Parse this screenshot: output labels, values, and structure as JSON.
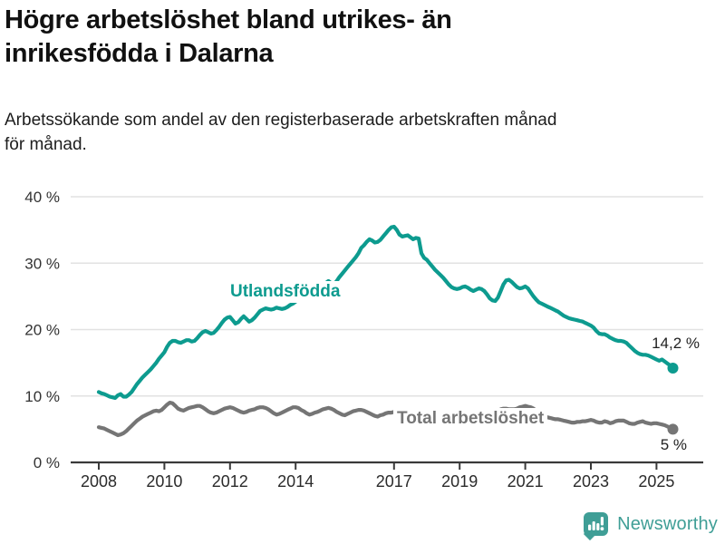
{
  "header": {
    "title_lines": [
      "Högre arbetslöshet bland utrikes- än",
      "inrikesfödda i Dalarna"
    ],
    "subtitle_lines": [
      "Arbetssökande som andel av den registerbaserade arbetskraften månad",
      "för månad."
    ]
  },
  "chart_data": {
    "type": "line",
    "title": "Högre arbetslöshet bland utrikes- än inrikesfödda i Dalarna",
    "subtitle": "Arbetssökande som andel av den registerbaserade arbetskraften månad för månad.",
    "x_unit": "month",
    "x_start": "2008-01",
    "x_end": "2025-07",
    "ylim": [
      0,
      40
    ],
    "grid": "horizontal",
    "legend_position": "inline-labels",
    "x_ticks": [
      "2008",
      "2010",
      "2012",
      "2014",
      "2017",
      "2019",
      "2021",
      "2023",
      "2025"
    ],
    "y_ticks": [
      {
        "value": 0,
        "label": "0 %"
      },
      {
        "value": 10,
        "label": "10 %"
      },
      {
        "value": 20,
        "label": "20 %"
      },
      {
        "value": 30,
        "label": "30 %"
      },
      {
        "value": 40,
        "label": "40 %"
      }
    ],
    "series": [
      {
        "name": "Utlandsfödda",
        "color": "#0d9b8f",
        "end_label": "14,2 %",
        "end_value": 14.2,
        "values": [
          10.6,
          10.4,
          10.3,
          10.1,
          9.9,
          9.8,
          9.7,
          10.1,
          10.3,
          9.9,
          9.9,
          10.2,
          10.6,
          11.2,
          11.8,
          12.3,
          12.8,
          13.2,
          13.6,
          14.0,
          14.5,
          15.0,
          15.6,
          16.1,
          16.6,
          17.4,
          18.0,
          18.3,
          18.3,
          18.1,
          18.0,
          18.2,
          18.4,
          18.4,
          18.2,
          18.3,
          18.7,
          19.2,
          19.6,
          19.8,
          19.6,
          19.4,
          19.5,
          19.9,
          20.4,
          21.0,
          21.5,
          21.8,
          21.9,
          21.4,
          20.9,
          21.1,
          21.6,
          22.0,
          21.6,
          21.2,
          21.4,
          21.8,
          22.3,
          22.8,
          23.0,
          23.2,
          23.1,
          23.0,
          23.1,
          23.3,
          23.2,
          23.1,
          23.2,
          23.4,
          23.7,
          23.9,
          24.2,
          24.5,
          24.9,
          25.2,
          25.5,
          25.9,
          26.2,
          26.5,
          26.4,
          26.1,
          26.6,
          27.0,
          27.3,
          27.0,
          26.8,
          27.3,
          27.9,
          28.4,
          28.9,
          29.4,
          29.9,
          30.4,
          30.9,
          31.5,
          32.3,
          32.7,
          33.2,
          33.6,
          33.4,
          33.1,
          33.2,
          33.5,
          34.0,
          34.5,
          35.0,
          35.4,
          35.5,
          35.0,
          34.3,
          34.0,
          34.1,
          34.2,
          33.9,
          33.6,
          33.8,
          33.7,
          31.5,
          30.8,
          30.5,
          30.0,
          29.5,
          29.0,
          28.6,
          28.2,
          27.8,
          27.3,
          26.8,
          26.4,
          26.2,
          26.1,
          26.2,
          26.4,
          26.5,
          26.3,
          26.0,
          25.8,
          26.0,
          26.2,
          26.1,
          25.8,
          25.3,
          24.7,
          24.4,
          24.3,
          24.8,
          25.8,
          26.8,
          27.4,
          27.5,
          27.2,
          26.8,
          26.4,
          26.2,
          26.3,
          26.5,
          26.2,
          25.6,
          25.0,
          24.5,
          24.1,
          23.9,
          23.7,
          23.5,
          23.3,
          23.1,
          22.9,
          22.7,
          22.4,
          22.1,
          21.9,
          21.7,
          21.6,
          21.5,
          21.4,
          21.3,
          21.2,
          21.0,
          20.8,
          20.6,
          20.3,
          19.8,
          19.4,
          19.3,
          19.3,
          19.1,
          18.8,
          18.6,
          18.4,
          18.3,
          18.3,
          18.2,
          18.0,
          17.6,
          17.2,
          16.8,
          16.5,
          16.3,
          16.2,
          16.2,
          16.1,
          15.9,
          15.7,
          15.5,
          15.3,
          15.5,
          15.2,
          14.9,
          14.6,
          14.2
        ]
      },
      {
        "name": "Total arbetslöshet",
        "color": "#757575",
        "end_label": "5 %",
        "end_value": 5.0,
        "values": [
          5.3,
          5.2,
          5.1,
          4.9,
          4.7,
          4.5,
          4.3,
          4.1,
          4.2,
          4.4,
          4.7,
          5.1,
          5.5,
          5.9,
          6.3,
          6.6,
          6.9,
          7.1,
          7.3,
          7.5,
          7.7,
          7.8,
          7.7,
          7.9,
          8.3,
          8.7,
          9.0,
          8.9,
          8.5,
          8.1,
          7.9,
          7.8,
          8.0,
          8.2,
          8.3,
          8.4,
          8.5,
          8.5,
          8.3,
          8.0,
          7.7,
          7.5,
          7.4,
          7.5,
          7.7,
          7.9,
          8.1,
          8.2,
          8.3,
          8.2,
          8.0,
          7.8,
          7.6,
          7.5,
          7.6,
          7.8,
          7.9,
          8.0,
          8.2,
          8.3,
          8.3,
          8.2,
          8.0,
          7.7,
          7.4,
          7.2,
          7.3,
          7.5,
          7.7,
          7.9,
          8.1,
          8.3,
          8.3,
          8.2,
          7.9,
          7.7,
          7.4,
          7.2,
          7.3,
          7.5,
          7.6,
          7.8,
          8.0,
          8.1,
          8.2,
          8.1,
          7.9,
          7.6,
          7.4,
          7.2,
          7.1,
          7.3,
          7.5,
          7.7,
          7.8,
          7.9,
          7.9,
          7.8,
          7.6,
          7.4,
          7.2,
          7.0,
          6.9,
          7.1,
          7.2,
          7.4,
          7.5,
          7.5,
          7.6,
          7.5,
          7.3,
          7.1,
          6.9,
          6.8,
          6.8,
          6.9,
          7.0,
          7.1,
          7.2,
          7.3,
          7.3,
          7.2,
          7.0,
          6.8,
          6.6,
          6.5,
          6.5,
          6.6,
          6.7,
          6.8,
          6.9,
          6.9,
          7.0,
          6.9,
          6.8,
          6.6,
          6.5,
          6.4,
          6.5,
          6.6,
          6.7,
          6.8,
          6.9,
          7.0,
          7.1,
          7.2,
          7.6,
          8.0,
          8.1,
          8.1,
          8.0,
          8.0,
          8.0,
          8.1,
          8.3,
          8.4,
          8.5,
          8.4,
          8.3,
          8.1,
          7.8,
          7.5,
          7.2,
          7.0,
          6.8,
          6.7,
          6.6,
          6.5,
          6.5,
          6.4,
          6.3,
          6.2,
          6.1,
          6.0,
          6.0,
          6.1,
          6.1,
          6.2,
          6.2,
          6.3,
          6.4,
          6.3,
          6.1,
          6.0,
          6.0,
          6.2,
          6.1,
          5.9,
          6.0,
          6.2,
          6.3,
          6.3,
          6.3,
          6.1,
          5.9,
          5.8,
          5.8,
          6.0,
          6.1,
          6.2,
          6.0,
          5.9,
          5.8,
          5.9,
          5.9,
          5.8,
          5.7,
          5.6,
          5.4,
          5.2,
          5.0
        ]
      }
    ]
  },
  "footer": {
    "brand": "Newsworthy",
    "logo_icon": "bar-chart-speech-bubble-icon",
    "brand_color": "#3f9e96"
  },
  "colors": {
    "series1": "#0d9b8f",
    "series2": "#757575",
    "grid": "#e2e2e2",
    "axis": "#3a3a3a",
    "tick_text": "#333333",
    "title_text": "#111111"
  }
}
